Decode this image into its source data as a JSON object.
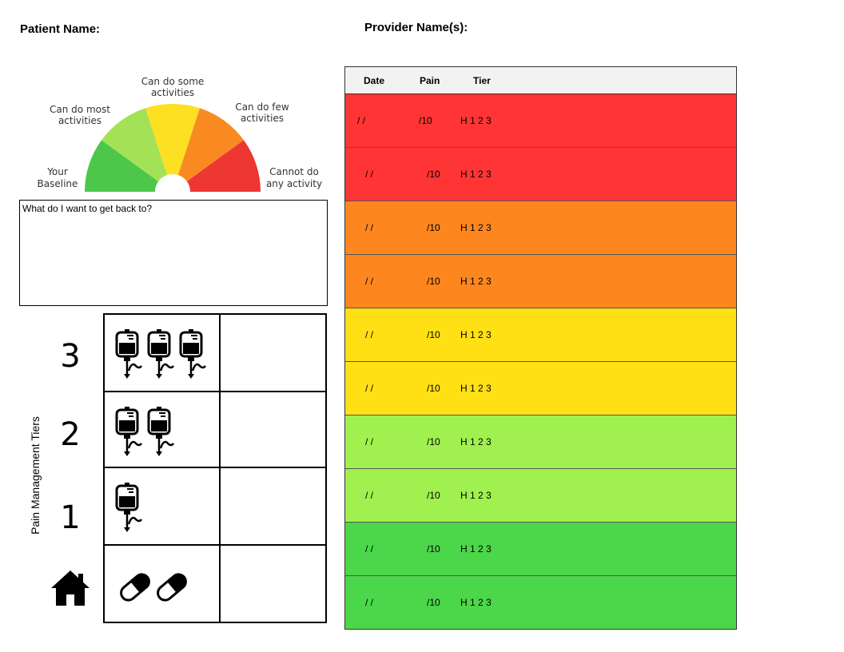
{
  "header": {
    "patient_label": "Patient Name:",
    "provider_label": "Provider Name(s):"
  },
  "gauge": {
    "labels": {
      "baseline": [
        "Your",
        "Baseline"
      ],
      "most": [
        "Can do most",
        "activities"
      ],
      "some": [
        "Can do some",
        "activities"
      ],
      "few": [
        "Can do few",
        "activities"
      ],
      "none": [
        "Cannot do",
        "any activity"
      ]
    },
    "colors": [
      "#4cc74a",
      "#a3e256",
      "#fde021",
      "#f98a21",
      "#ee3632"
    ]
  },
  "goal": {
    "prompt": "What do I want to get back to?"
  },
  "tiers": {
    "axis_label": "Pain Management Tiers",
    "levels": [
      "3",
      "2",
      "1"
    ],
    "home_icon": "home-icon",
    "iv_icon": "iv-bag-icon",
    "pill_icon": "pill-capsule-icon"
  },
  "log": {
    "headers": {
      "date": "Date",
      "pain": "Pain",
      "tier": "Tier"
    },
    "rows": [
      {
        "date": "/ /",
        "pain": "/10",
        "tier": "H 1 2 3",
        "color": "#ff3535"
      },
      {
        "date": "/   /",
        "pain": "/10",
        "tier": "H 1 2 3",
        "color": "#ff3535"
      },
      {
        "date": "/   /",
        "pain": "/10",
        "tier": "H 1 2 3",
        "color": "#fe861f"
      },
      {
        "date": "/   /",
        "pain": "/10",
        "tier": "H 1 2 3",
        "color": "#fe861f"
      },
      {
        "date": "/   /",
        "pain": "/10",
        "tier": "H 1 2 3",
        "color": "#ffe015"
      },
      {
        "date": "/   /",
        "pain": "/10",
        "tier": "H 1 2 3",
        "color": "#ffe015"
      },
      {
        "date": "/   /",
        "pain": "/10",
        "tier": "H 1 2 3",
        "color": "#a0f050"
      },
      {
        "date": "/   /",
        "pain": "/10",
        "tier": "H 1 2 3",
        "color": "#a0f050"
      },
      {
        "date": "/   /",
        "pain": "/10",
        "tier": "H 1 2 3",
        "color": "#4cd64a"
      },
      {
        "date": "/   /",
        "pain": "/10",
        "tier": "H 1 2 3",
        "color": "#4cd64a"
      }
    ]
  }
}
